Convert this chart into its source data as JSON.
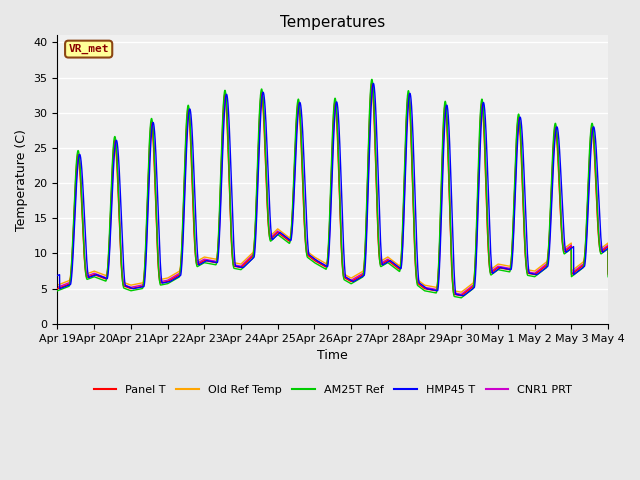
{
  "title": "Temperatures",
  "xlabel": "Time",
  "ylabel": "Temperature (C)",
  "ylim": [
    0,
    41
  ],
  "yticks": [
    0,
    5,
    10,
    15,
    20,
    25,
    30,
    35,
    40
  ],
  "annotation_text": "VR_met",
  "annotation_color": "#8B0000",
  "annotation_bg": "#FFFF99",
  "annotation_border": "#8B4513",
  "series_colors": {
    "Panel T": "#FF0000",
    "Old Ref Temp": "#FFA500",
    "AM25T Ref": "#00CC00",
    "HMP45 T": "#0000FF",
    "CNR1 PRT": "#CC00CC"
  },
  "bg_color": "#E8E8E8",
  "plot_bg": "#F0F0F0",
  "grid_color": "#FFFFFF",
  "title_fontsize": 11,
  "label_fontsize": 9,
  "tick_fontsize": 8,
  "day_maxes": [
    23,
    25,
    27,
    30,
    31,
    34,
    32,
    31,
    32,
    36,
    30,
    32,
    31,
    28,
    28
  ],
  "day_mins": [
    5,
    7,
    5,
    6,
    9,
    8,
    13,
    9,
    6,
    9,
    5,
    4,
    8,
    7,
    11
  ]
}
